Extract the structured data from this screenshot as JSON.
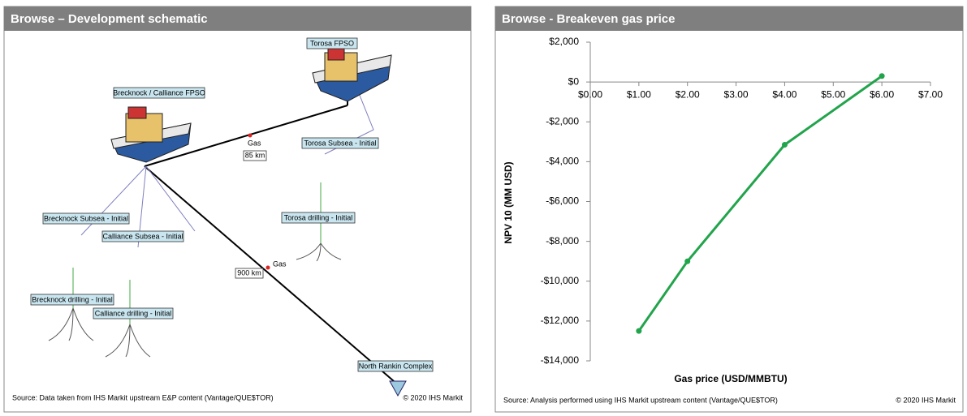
{
  "diagram": {
    "title": "Browse – Development schematic",
    "labels": [
      "Torosa FPSO",
      "Brecknock / Calliance FPSO",
      "Torosa Subsea - Initial",
      "Torosa drilling - Initial",
      "Brecknock Subsea - Initial",
      "Calliance Subsea - Initial",
      "Brecknock drilling - Initial",
      "Calliance drilling - Initial",
      "North Rankin Complex"
    ],
    "pipelines": [
      {
        "product": "Gas",
        "length": "85 km"
      },
      {
        "product": "Gas",
        "length": "900 km"
      }
    ],
    "source": "Source: Data taken from IHS Markit upstream E&P content (Vantage/QUE$TOR)",
    "copyright": "© 2020 IHS Markit"
  },
  "chart_data": {
    "type": "line",
    "title": "Browse - Breakeven gas price",
    "x_label": "Gas price (USD/MMBTU)",
    "y_label": "NPV 10 (MM USD)",
    "x": [
      1,
      2,
      4,
      6
    ],
    "values": [
      -12500,
      -9000,
      -3150,
      300
    ],
    "color": "#22a44c",
    "xlim": [
      0,
      7
    ],
    "ylim": [
      -14000,
      2000
    ],
    "xticks": [
      {
        "value": 0,
        "label": "$0.00"
      },
      {
        "value": 1,
        "label": "$1.00"
      },
      {
        "value": 2,
        "label": "$2.00"
      },
      {
        "value": 3,
        "label": "$3.00"
      },
      {
        "value": 4,
        "label": "$4.00"
      },
      {
        "value": 5,
        "label": "$5.00"
      },
      {
        "value": 6,
        "label": "$6.00"
      },
      {
        "value": 7,
        "label": "$7.00"
      }
    ],
    "yticks": [
      {
        "value": 2000,
        "label": "$2,000"
      },
      {
        "value": 0,
        "label": "$0"
      },
      {
        "value": -2000,
        "label": "-$2,000"
      },
      {
        "value": -4000,
        "label": "-$4,000"
      },
      {
        "value": -6000,
        "label": "-$6,000"
      },
      {
        "value": -8000,
        "label": "-$8,000"
      },
      {
        "value": -10000,
        "label": "-$10,000"
      },
      {
        "value": -12000,
        "label": "-$12,000"
      },
      {
        "value": -14000,
        "label": "-$14,000"
      }
    ],
    "grid": false,
    "source": "Source: Analysis performed using IHS Markit upstream content (Vantage/QUE$TOR)",
    "copyright": "© 2020 IHS Markit"
  }
}
